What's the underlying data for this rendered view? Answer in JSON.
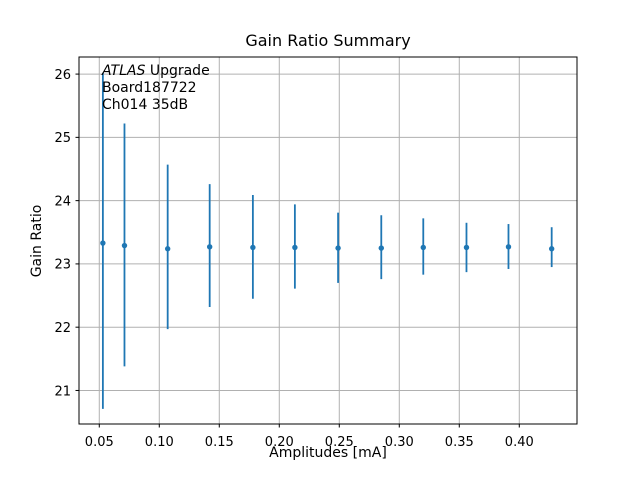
{
  "chart_data": {
    "type": "scatter",
    "title": "Gain Ratio Summary",
    "xlabel": "Amplitudes [mA]",
    "ylabel": "Gain Ratio",
    "annotation": {
      "line1_italic": "ATLAS",
      "line1_rest": " Upgrade",
      "line2": "Board187722",
      "line3": "Ch014 35dB"
    },
    "xlim": [
      0.0331,
      0.4481
    ],
    "ylim": [
      20.47,
      26.27
    ],
    "xticks": [
      0.05,
      0.1,
      0.15,
      0.2,
      0.25,
      0.3,
      0.35,
      0.4
    ],
    "xtick_labels": [
      "0.05",
      "0.10",
      "0.15",
      "0.20",
      "0.25",
      "0.30",
      "0.35",
      "0.40"
    ],
    "yticks": [
      21,
      22,
      23,
      24,
      25,
      26
    ],
    "ytick_labels": [
      "21",
      "22",
      "23",
      "24",
      "25",
      "26"
    ],
    "grid": true,
    "legend_position": "none",
    "series": [
      {
        "name": "gain-ratio-errorbar",
        "x": [
          0.053,
          0.071,
          0.107,
          0.142,
          0.178,
          0.213,
          0.249,
          0.285,
          0.32,
          0.356,
          0.391,
          0.427
        ],
        "y": [
          23.33,
          23.29,
          23.24,
          23.27,
          23.26,
          23.26,
          23.25,
          23.25,
          23.26,
          23.26,
          23.27,
          23.24
        ],
        "y_upper": [
          26.02,
          25.22,
          24.57,
          24.26,
          24.09,
          23.94,
          23.81,
          23.77,
          23.72,
          23.65,
          23.63,
          23.58
        ],
        "y_lower": [
          20.71,
          21.38,
          21.97,
          22.32,
          22.45,
          22.61,
          22.7,
          22.76,
          22.83,
          22.87,
          22.92,
          22.95
        ]
      }
    ],
    "colors": {
      "marker": "#1f77b4",
      "grid": "#b0b0b0",
      "spine": "#000000",
      "text": "#000000",
      "background": "#ffffff"
    }
  }
}
